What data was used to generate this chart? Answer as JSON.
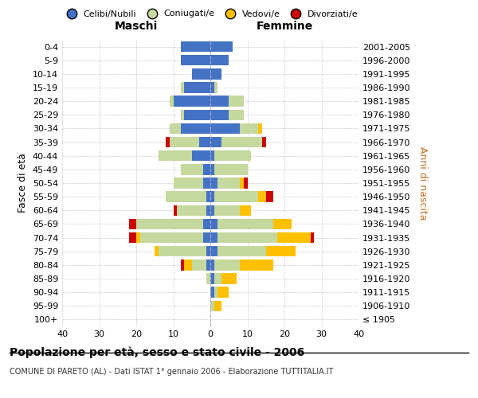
{
  "age_groups": [
    "100+",
    "95-99",
    "90-94",
    "85-89",
    "80-84",
    "75-79",
    "70-74",
    "65-69",
    "60-64",
    "55-59",
    "50-54",
    "45-49",
    "40-44",
    "35-39",
    "30-34",
    "25-29",
    "20-24",
    "15-19",
    "10-14",
    "5-9",
    "0-4"
  ],
  "birth_years": [
    "≤ 1905",
    "1906-1910",
    "1911-1915",
    "1916-1920",
    "1921-1925",
    "1926-1930",
    "1931-1935",
    "1936-1940",
    "1941-1945",
    "1946-1950",
    "1951-1955",
    "1956-1960",
    "1961-1965",
    "1966-1970",
    "1971-1975",
    "1976-1980",
    "1981-1985",
    "1986-1990",
    "1991-1995",
    "1996-2000",
    "2001-2005"
  ],
  "maschi": {
    "celibi": [
      0,
      0,
      0,
      0,
      1,
      1,
      2,
      2,
      1,
      1,
      2,
      2,
      5,
      3,
      8,
      7,
      10,
      7,
      5,
      8,
      8
    ],
    "coniugati": [
      0,
      0,
      0,
      1,
      4,
      13,
      17,
      18,
      8,
      11,
      8,
      6,
      9,
      8,
      3,
      1,
      1,
      1,
      0,
      0,
      0
    ],
    "vedovi": [
      0,
      0,
      0,
      0,
      2,
      1,
      1,
      0,
      0,
      0,
      0,
      0,
      0,
      0,
      0,
      0,
      0,
      0,
      0,
      0,
      0
    ],
    "divorziati": [
      0,
      0,
      0,
      0,
      1,
      0,
      2,
      2,
      1,
      0,
      0,
      0,
      0,
      1,
      0,
      0,
      0,
      0,
      0,
      0,
      0
    ]
  },
  "femmine": {
    "nubili": [
      0,
      0,
      1,
      1,
      1,
      2,
      2,
      2,
      1,
      1,
      2,
      1,
      1,
      3,
      8,
      5,
      5,
      1,
      3,
      5,
      6
    ],
    "coniugate": [
      0,
      1,
      1,
      2,
      7,
      13,
      16,
      15,
      7,
      12,
      6,
      9,
      10,
      11,
      5,
      4,
      4,
      1,
      0,
      0,
      0
    ],
    "vedove": [
      0,
      2,
      3,
      4,
      9,
      8,
      9,
      5,
      3,
      2,
      1,
      0,
      0,
      0,
      1,
      0,
      0,
      0,
      0,
      0,
      0
    ],
    "divorziate": [
      0,
      0,
      0,
      0,
      0,
      0,
      1,
      0,
      0,
      2,
      1,
      0,
      0,
      1,
      0,
      0,
      0,
      0,
      0,
      0,
      0
    ]
  },
  "color_celibi": "#4472c4",
  "color_coniugati": "#c5d89d",
  "color_vedovi": "#ffc000",
  "color_divorziati": "#cc0000",
  "xlim": 40,
  "title": "Popolazione per età, sesso e stato civile - 2006",
  "subtitle": "COMUNE DI PARETO (AL) - Dati ISTAT 1° gennaio 2006 - Elaborazione TUTTITALIA.IT",
  "ylabel_left": "Fasce di età",
  "ylabel_right": "Anni di nascita",
  "xlabel_maschi": "Maschi",
  "xlabel_femmine": "Femmine",
  "legend_labels": [
    "Celibi/Nubili",
    "Coniugati/e",
    "Vedovi/e",
    "Divorziati/e"
  ]
}
